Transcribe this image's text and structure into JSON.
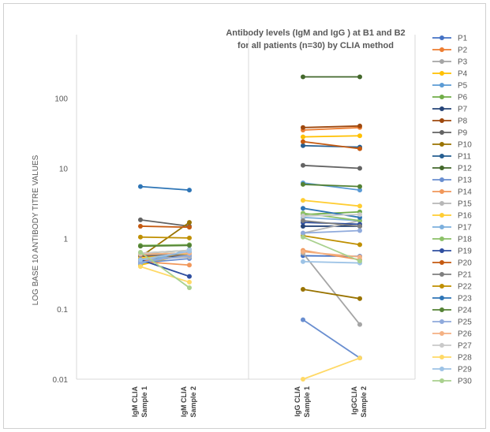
{
  "chart_data": {
    "type": "line",
    "title_lines": [
      "Antibody levels (IgM and IgG ) at B1 and B2",
      "for all patients (n=30) by CLIA method"
    ],
    "ylabel": "LOG BASE 10 ANTIBODY TITRE VALUES",
    "yscale": "log",
    "ylim": [
      0.01,
      500
    ],
    "yticks": [
      "0.01",
      "0.1",
      "1",
      "10",
      "100"
    ],
    "grid": false,
    "legend_position": "right",
    "groups": [
      {
        "categories": [
          "IgM  CLIA Sample 1",
          "IgM  CLIA Sample 2"
        ]
      },
      {
        "categories": [
          "IgG CLIA Sample 1",
          "IgGCLIA Sample 2"
        ]
      }
    ],
    "category_lines": [
      [
        "IgM  CLIA",
        "Sample 1"
      ],
      [
        "IgM  CLIA",
        "Sample 2"
      ],
      [
        "IgG CLIA",
        "Sample 1"
      ],
      [
        "IgGCLIA",
        "Sample 2"
      ]
    ],
    "series": [
      {
        "name": "P1",
        "color": "#4472C4",
        "igm": [
          0.52,
          0.56
        ],
        "igg": [
          0.57,
          0.56
        ]
      },
      {
        "name": "P2",
        "color": "#ED7D31",
        "igm": [
          0.48,
          0.6
        ],
        "igg": [
          35,
          38
        ]
      },
      {
        "name": "P3",
        "color": "#A5A5A5",
        "igm": [
          0.44,
          0.66
        ],
        "igg": [
          0.62,
          0.06
        ]
      },
      {
        "name": "P4",
        "color": "#FFC000",
        "igm": [
          0.42,
          0.62
        ],
        "igg": [
          28,
          29
        ]
      },
      {
        "name": "P5",
        "color": "#5B9BD5",
        "igm": [
          0.5,
          0.64
        ],
        "igg": [
          6.2,
          4.9
        ]
      },
      {
        "name": "P6",
        "color": "#70AD47",
        "igm": [
          0.62,
          0.68
        ],
        "igg": [
          2.2,
          2.4
        ]
      },
      {
        "name": "P7",
        "color": "#264478",
        "igm": [
          0.58,
          0.55
        ],
        "igg": [
          1.5,
          1.5
        ]
      },
      {
        "name": "P8",
        "color": "#9E480E",
        "igm": [
          0.56,
          0.58
        ],
        "igg": [
          38,
          40
        ]
      },
      {
        "name": "P9",
        "color": "#636363",
        "igm": [
          1.85,
          1.5
        ],
        "igg": [
          11,
          10
        ]
      },
      {
        "name": "P10",
        "color": "#997300",
        "igm": [
          0.55,
          1.7
        ],
        "igg": [
          0.19,
          0.14
        ]
      },
      {
        "name": "P11",
        "color": "#255E91",
        "igm": [
          0.6,
          0.6
        ],
        "igg": [
          21,
          20
        ]
      },
      {
        "name": "P12",
        "color": "#43682B",
        "igm": [
          0.6,
          0.62
        ],
        "igg": [
          200,
          200
        ]
      },
      {
        "name": "P13",
        "color": "#698ED0",
        "igm": [
          0.45,
          0.52
        ],
        "igg": [
          0.07,
          0.02
        ]
      },
      {
        "name": "P14",
        "color": "#F1975A",
        "igm": [
          0.47,
          0.42
        ],
        "igg": [
          0.68,
          0.5
        ]
      },
      {
        "name": "P15",
        "color": "#B7B7B7",
        "igm": [
          0.5,
          0.55
        ],
        "igg": [
          1.2,
          1.8
        ]
      },
      {
        "name": "P16",
        "color": "#FFCD33",
        "igm": [
          0.53,
          0.6
        ],
        "igg": [
          3.5,
          2.9
        ]
      },
      {
        "name": "P17",
        "color": "#7CAFDD",
        "igm": [
          0.44,
          0.7
        ],
        "igg": [
          2.0,
          1.8
        ]
      },
      {
        "name": "P18",
        "color": "#8CC168",
        "igm": [
          0.8,
          0.82
        ],
        "igg": [
          2.3,
          1.8
        ]
      },
      {
        "name": "P19",
        "color": "#2F4FA0",
        "igm": [
          0.5,
          0.29
        ],
        "igg": [
          1.7,
          1.6
        ]
      },
      {
        "name": "P20",
        "color": "#C55A11",
        "igm": [
          1.5,
          1.45
        ],
        "igg": [
          24,
          19
        ]
      },
      {
        "name": "P21",
        "color": "#7F7F7F",
        "igm": [
          0.58,
          0.58
        ],
        "igg": [
          1.8,
          1.5
        ]
      },
      {
        "name": "P22",
        "color": "#BF8F00",
        "igm": [
          1.05,
          1.02
        ],
        "igg": [
          1.1,
          0.82
        ]
      },
      {
        "name": "P23",
        "color": "#2E75B6",
        "igm": [
          5.5,
          4.9
        ],
        "igg": [
          2.7,
          2.0
        ]
      },
      {
        "name": "P24",
        "color": "#548235",
        "igm": [
          0.78,
          0.8
        ],
        "igg": [
          5.9,
          5.5
        ]
      },
      {
        "name": "P25",
        "color": "#8FAADC",
        "igm": [
          0.46,
          0.58
        ],
        "igg": [
          1.2,
          1.3
        ]
      },
      {
        "name": "P26",
        "color": "#F4B183",
        "igm": [
          0.6,
          0.62
        ],
        "igg": [
          0.65,
          0.55
        ]
      },
      {
        "name": "P27",
        "color": "#C9C9C9",
        "igm": [
          0.62,
          0.68
        ],
        "igg": [
          2.1,
          2.2
        ]
      },
      {
        "name": "P28",
        "color": "#FFD966",
        "igm": [
          0.4,
          0.24
        ],
        "igg": [
          0.01,
          0.02
        ]
      },
      {
        "name": "P29",
        "color": "#9DC3E6",
        "igm": [
          0.5,
          0.66
        ],
        "igg": [
          0.47,
          0.45
        ]
      },
      {
        "name": "P30",
        "color": "#A9D18E",
        "igm": [
          0.64,
          0.2
        ],
        "igg": [
          1.05,
          0.48
        ]
      }
    ]
  }
}
